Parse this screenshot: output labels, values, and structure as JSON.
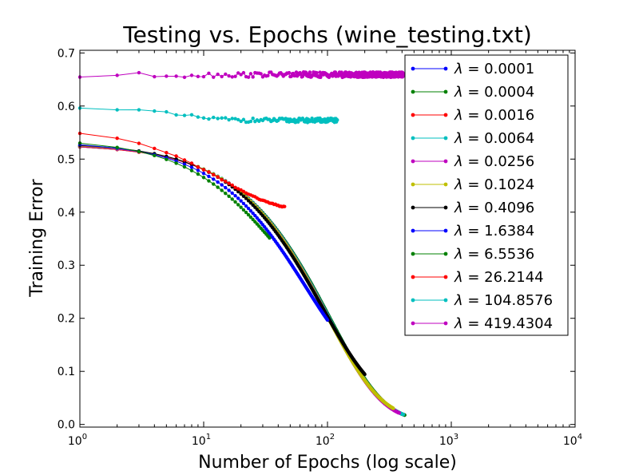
{
  "chart_data": {
    "type": "line",
    "title": "Testing vs. Epochs (wine_testing.txt)",
    "xlabel": "Number of Epochs (log scale)",
    "ylabel": "Training Error",
    "xscale": "log",
    "xlim": [
      1,
      10000
    ],
    "ylim": [
      -0.005,
      0.705
    ],
    "xticks": [
      {
        "base": "10",
        "exp": "0",
        "value": 1
      },
      {
        "base": "10",
        "exp": "1",
        "value": 10
      },
      {
        "base": "10",
        "exp": "2",
        "value": 100
      },
      {
        "base": "10",
        "exp": "3",
        "value": 1000
      },
      {
        "base": "10",
        "exp": "4",
        "value": 10000
      }
    ],
    "yticks": [
      {
        "label": "0.0",
        "value": 0.0
      },
      {
        "label": "0.1",
        "value": 0.1
      },
      {
        "label": "0.2",
        "value": 0.2
      },
      {
        "label": "0.3",
        "value": 0.3
      },
      {
        "label": "0.4",
        "value": 0.4
      },
      {
        "label": "0.5",
        "value": 0.5
      },
      {
        "label": "0.6",
        "value": 0.6
      },
      {
        "label": "0.7",
        "value": 0.7
      }
    ],
    "grid": false,
    "legend_position": "top-right",
    "series": [
      {
        "name": "λ = 0.0001",
        "symbol": "λ",
        "value_text": "= 0.0001",
        "color": "#0000ff",
        "model": {
          "start": 0.523,
          "floor": 0.008,
          "k": 0.0095,
          "end_epochs": 420,
          "noise": 0.0
        },
        "x": [],
        "y": []
      },
      {
        "name": "λ = 0.0004",
        "symbol": "λ",
        "value_text": "= 0.0004",
        "color": "#008000",
        "model": {
          "start": 0.523,
          "floor": 0.008,
          "k": 0.0095,
          "end_epochs": 420,
          "noise": 0.0
        },
        "x": [],
        "y": []
      },
      {
        "name": "λ = 0.0016",
        "symbol": "λ",
        "value_text": "= 0.0016",
        "color": "#ff0000",
        "model": {
          "start": 0.523,
          "floor": 0.009,
          "k": 0.0097,
          "end_epochs": 410,
          "noise": 0.0
        },
        "x": [],
        "y": []
      },
      {
        "name": "λ = 0.0064",
        "symbol": "λ",
        "value_text": "= 0.0064",
        "color": "#00bfbf",
        "model": {
          "start": 0.524,
          "floor": 0.009,
          "k": 0.0097,
          "end_epochs": 410,
          "noise": 0.0
        },
        "x": [],
        "y": []
      },
      {
        "name": "λ = 0.0256",
        "symbol": "λ",
        "value_text": "= 0.0256",
        "color": "#bf00bf",
        "model": {
          "start": 0.524,
          "floor": 0.009,
          "k": 0.0098,
          "end_epochs": 380,
          "noise": 0.0
        },
        "x": [],
        "y": []
      },
      {
        "name": "λ = 0.1024",
        "symbol": "λ",
        "value_text": "= 0.1024",
        "color": "#bfbf00",
        "model": {
          "start": 0.525,
          "floor": 0.013,
          "k": 0.01,
          "end_epochs": 340,
          "noise": 0.0
        },
        "x": [],
        "y": []
      },
      {
        "name": "λ = 0.4096",
        "symbol": "λ",
        "value_text": "= 0.4096",
        "color": "#000000",
        "model": {
          "start": 0.526,
          "floor": 0.04,
          "k": 0.011,
          "end_epochs": 200,
          "noise": 0.0
        },
        "x": [],
        "y": []
      },
      {
        "name": "λ = 1.6384",
        "symbol": "λ",
        "value_text": "= 1.6384",
        "color": "#0000ff",
        "model": {
          "start": 0.527,
          "floor": 0.1,
          "k": 0.015,
          "end_epochs": 100,
          "noise": 0.0
        },
        "x": [],
        "y": []
      },
      {
        "name": "λ = 6.5536",
        "symbol": "λ",
        "value_text": "= 6.5536",
        "color": "#008000",
        "model": {
          "start": 0.53,
          "floor": 0.22,
          "k": 0.026,
          "end_epochs": 34,
          "noise": 0.0
        },
        "x": [],
        "y": []
      },
      {
        "name": "λ = 26.2144",
        "symbol": "λ",
        "value_text": "= 26.2144",
        "color": "#ff0000",
        "model": {
          "start": 0.548,
          "floor": 0.403,
          "k": 0.07,
          "end_epochs": 45,
          "noise": 0.001
        },
        "x": [],
        "y": []
      },
      {
        "name": "λ = 104.8576",
        "symbol": "λ",
        "value_text": "= 104.8576",
        "color": "#00bfbf",
        "model": {
          "start": 0.6,
          "floor": 0.573,
          "k": 0.2,
          "end_epochs": 120,
          "noise": 0.004
        },
        "x": [],
        "y": []
      },
      {
        "name": "λ = 419.4304",
        "symbol": "λ",
        "value_text": "= 419.4304",
        "color": "#bf00bf",
        "model": {
          "start": 0.657,
          "floor": 0.659,
          "k": 0.3,
          "end_epochs": 410,
          "noise": 0.005
        },
        "x": [],
        "y": []
      }
    ]
  }
}
